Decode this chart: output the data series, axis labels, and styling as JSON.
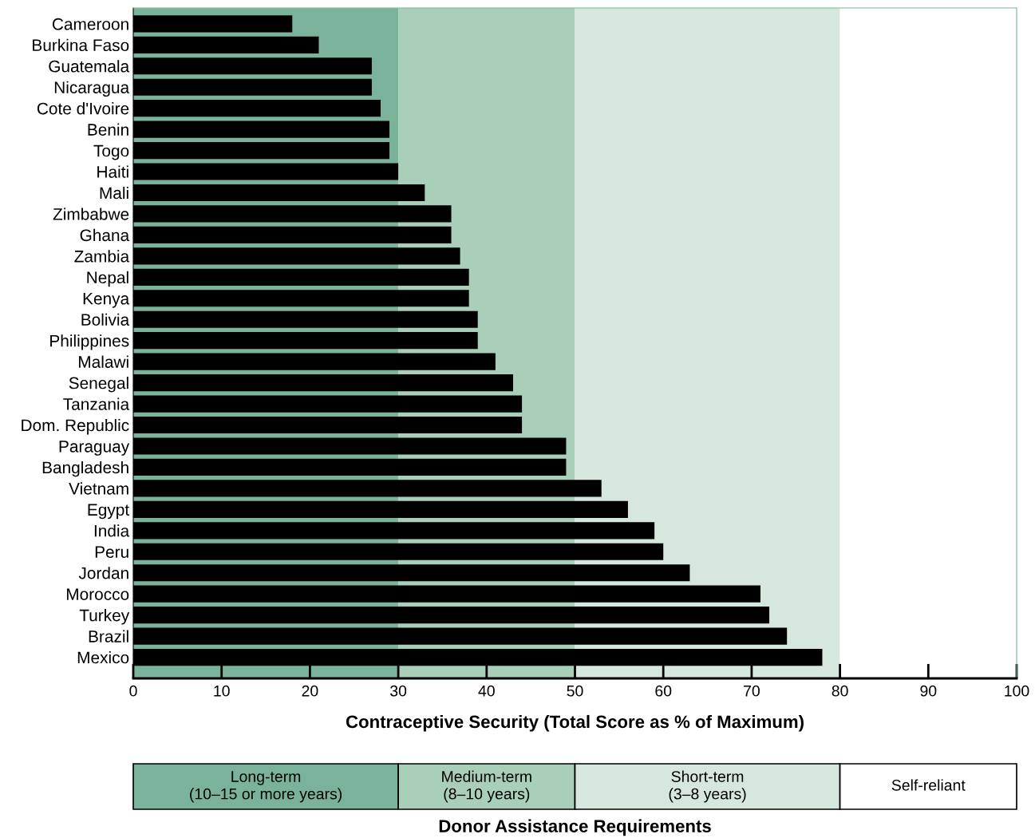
{
  "chart_data": {
    "type": "bar",
    "orientation": "horizontal",
    "categories": [
      "Cameroon",
      "Burkina Faso",
      "Guatemala",
      "Nicaragua",
      "Cote d'Ivoire",
      "Benin",
      "Togo",
      "Haiti",
      "Mali",
      "Zimbabwe",
      "Ghana",
      "Zambia",
      "Nepal",
      "Kenya",
      "Bolivia",
      "Philippines",
      "Malawi",
      "Senegal",
      "Tanzania",
      "Dom. Republic",
      "Paraguay",
      "Bangladesh",
      "Vietnam",
      "Egypt",
      "India",
      "Peru",
      "Jordan",
      "Morocco",
      "Turkey",
      "Brazil",
      "Mexico"
    ],
    "values": [
      18,
      21,
      27,
      27,
      28,
      29,
      29,
      30,
      33,
      36,
      36,
      37,
      38,
      38,
      39,
      39,
      41,
      43,
      44,
      44,
      49,
      49,
      53,
      56,
      59,
      60,
      63,
      71,
      72,
      74,
      78
    ],
    "color": "#000000",
    "xlim": [
      0,
      100
    ],
    "xticks": [
      0,
      10,
      20,
      30,
      40,
      50,
      60,
      70,
      80,
      90,
      100
    ],
    "xlabel": "Contraceptive Security (Total Score as % of Maximum)",
    "legend_title": "Donor Assistance Requirements",
    "annotations": [
      "Long-term\n(10–15 or more years)",
      "Medium-term\n(8–10 years)",
      "Short-term\n(3–8 years)",
      "Self-reliant"
    ],
    "bands": [
      {
        "axis": "x",
        "from": 0,
        "to": 30,
        "color": "#7ab39a"
      },
      {
        "axis": "x",
        "from": 30,
        "to": 50,
        "color": "#a9cfbb"
      },
      {
        "axis": "x",
        "from": 50,
        "to": 80,
        "color": "#d6e7de"
      },
      {
        "axis": "x",
        "from": 80,
        "to": 100,
        "color": "#ffffff"
      }
    ],
    "grid": false
  }
}
